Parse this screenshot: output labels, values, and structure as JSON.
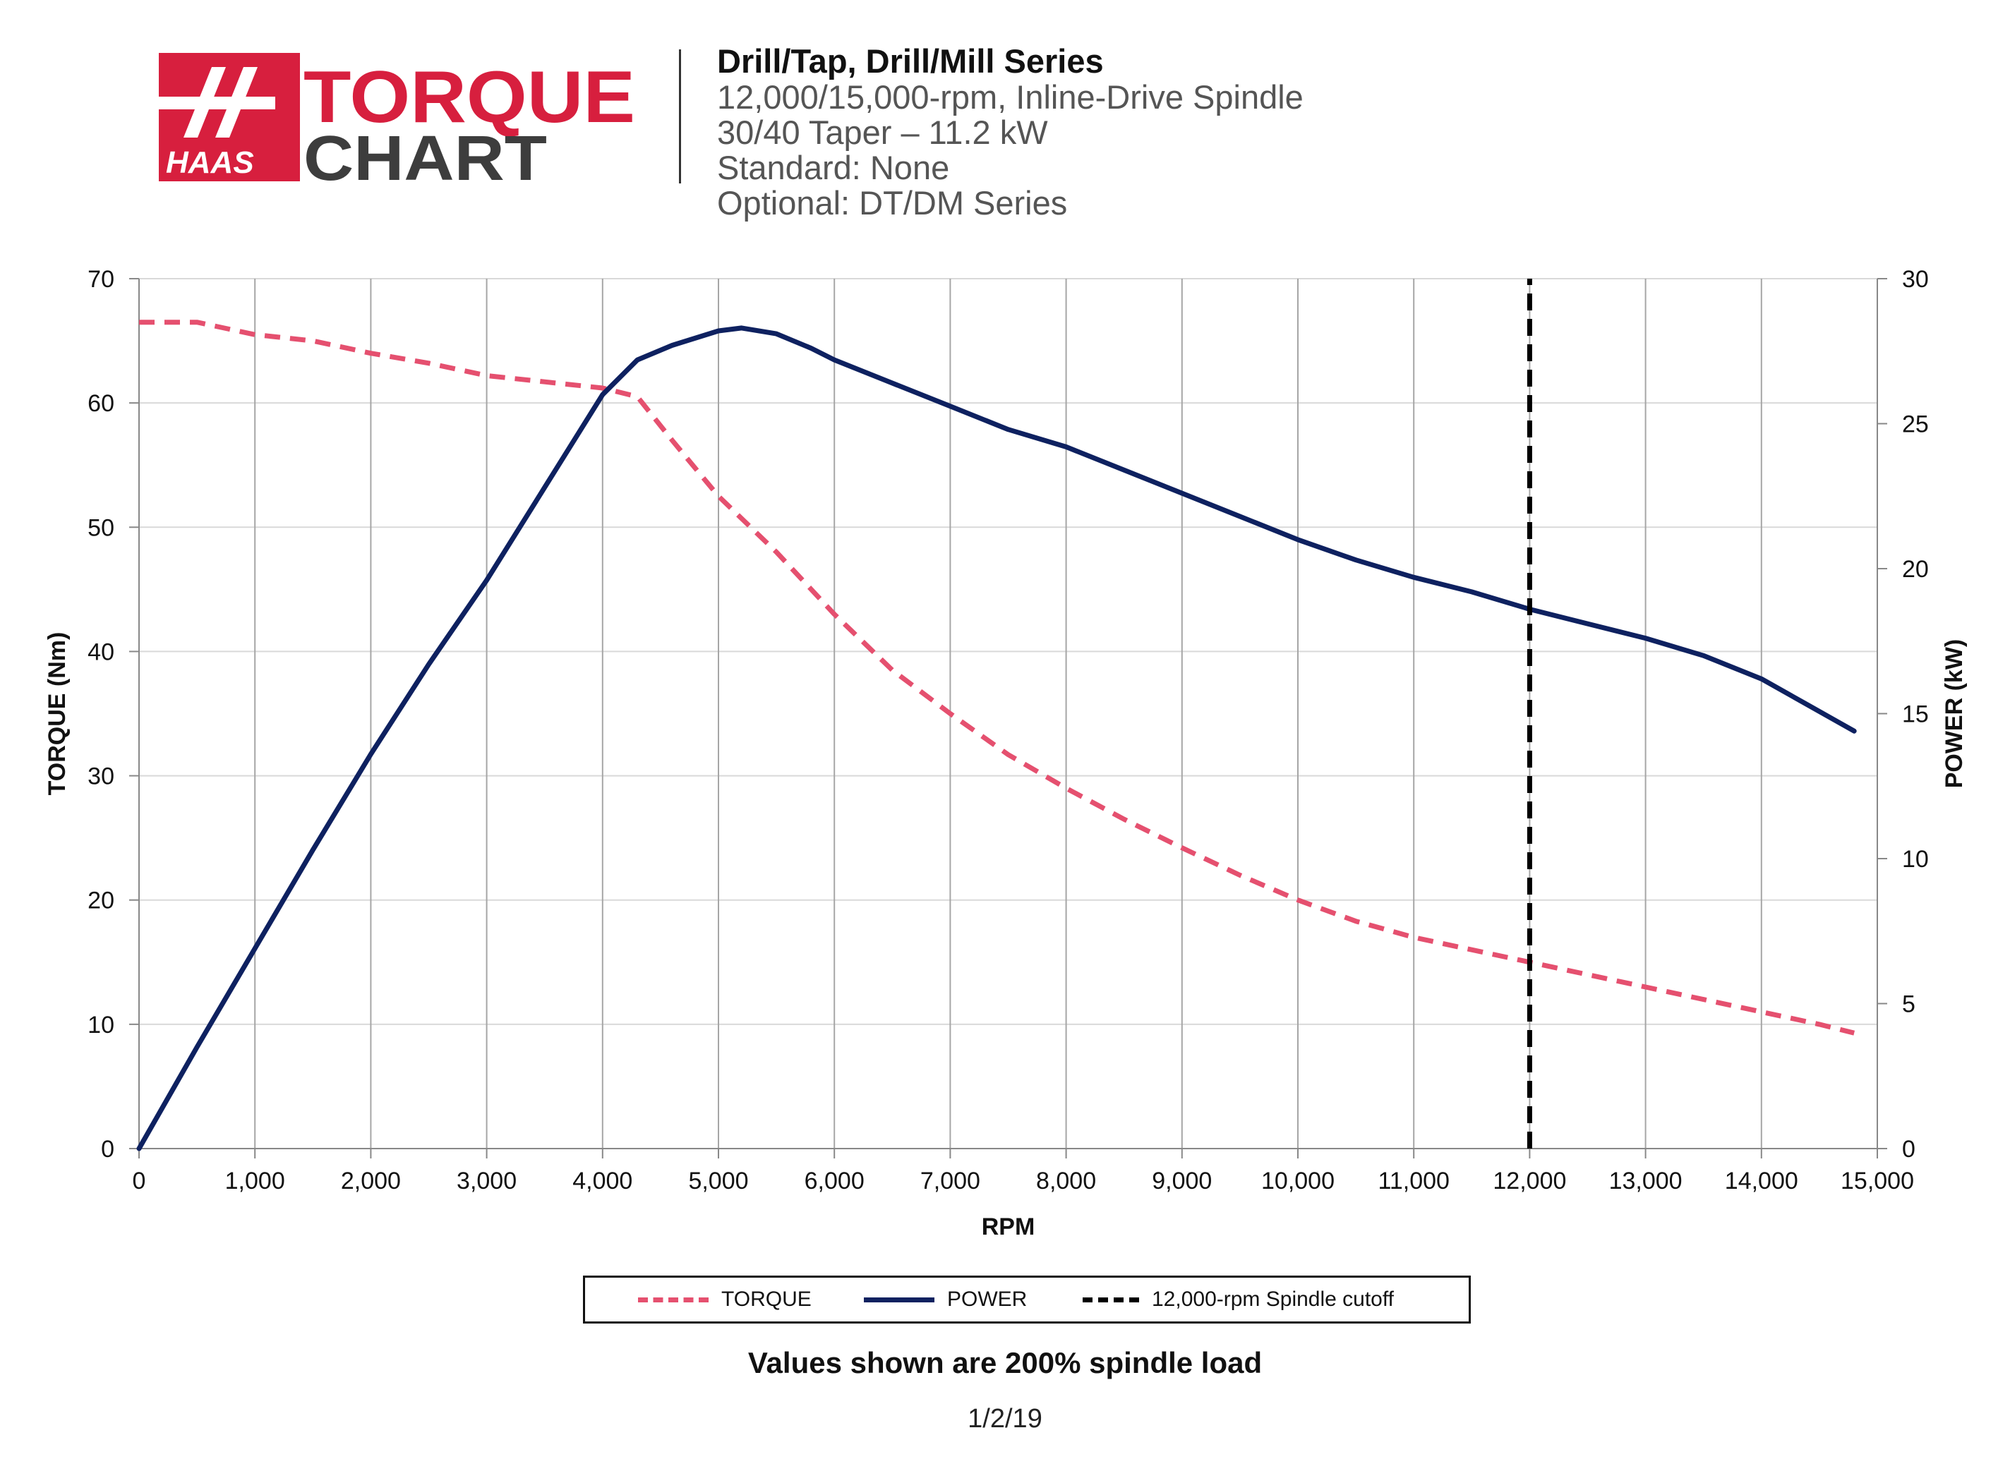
{
  "brand": {
    "logo_text_haas": "HAAS",
    "logo_text_torque": "TORQUE",
    "logo_text_chart": "CHART",
    "red": "#d71f3e",
    "dark": "#3d3d3d"
  },
  "header": {
    "line1": "Drill/Tap, Drill/Mill Series",
    "line2": "12,000/15,000-rpm, Inline-Drive Spindle",
    "line3": "30/40 Taper – 11.2 kW",
    "line4": "Standard: None",
    "line5": "Optional: DT/DM Series"
  },
  "chart_data": {
    "type": "line",
    "xlabel": "RPM",
    "ylabel_left": "TORQUE (Nm)",
    "ylabel_right": "POWER (kW)",
    "xlim": [
      0,
      15000
    ],
    "ylim_left": [
      0,
      70
    ],
    "ylim_right": [
      0,
      30
    ],
    "x_ticks": [
      0,
      1000,
      2000,
      3000,
      4000,
      5000,
      6000,
      7000,
      8000,
      9000,
      10000,
      11000,
      12000,
      13000,
      14000,
      15000
    ],
    "x_tick_labels": [
      "0",
      "1,000",
      "2,000",
      "3,000",
      "4,000",
      "5,000",
      "6,000",
      "7,000",
      "8,000",
      "9,000",
      "10,000",
      "11,000",
      "12,000",
      "13,000",
      "14,000",
      "15,000"
    ],
    "y_left_ticks": [
      0,
      10,
      20,
      30,
      40,
      50,
      60,
      70
    ],
    "y_left_tick_labels": [
      "0",
      "10",
      "20",
      "30",
      "40",
      "50",
      "60",
      "70"
    ],
    "y_right_ticks": [
      0,
      5,
      10,
      15,
      20,
      25,
      30
    ],
    "y_right_tick_labels": [
      "0",
      "5",
      "10",
      "15",
      "20",
      "25",
      "30"
    ],
    "grid": "vertical",
    "legend_position": "bottom",
    "series": [
      {
        "name": "TORQUE",
        "axis": "left",
        "style": "dashed",
        "color": "#e5506f",
        "x": [
          0,
          500,
          1000,
          1500,
          2000,
          2500,
          3000,
          3500,
          4000,
          4300,
          4600,
          5000,
          5500,
          6000,
          6500,
          7000,
          7500,
          8000,
          8500,
          9000,
          9500,
          10000,
          10500,
          11000,
          11500,
          12000,
          12500,
          13000,
          13500,
          14000,
          14500,
          14800
        ],
        "y": [
          66.5,
          66.5,
          65.5,
          65,
          64,
          63.2,
          62.2,
          61.7,
          61.2,
          60.5,
          57,
          52.5,
          48,
          43,
          38.5,
          35,
          31.7,
          29,
          26.5,
          24.2,
          22,
          20,
          18.3,
          17,
          16,
          15,
          14,
          13,
          12,
          11,
          10,
          9.3
        ]
      },
      {
        "name": "POWER",
        "axis": "right",
        "style": "solid",
        "color": "#0e2160",
        "x": [
          0,
          500,
          1000,
          1500,
          2000,
          2500,
          3000,
          3500,
          4000,
          4300,
          4600,
          5000,
          5200,
          5500,
          5800,
          6000,
          6500,
          7000,
          7500,
          8000,
          8500,
          9000,
          9500,
          10000,
          10500,
          11000,
          11500,
          12000,
          12500,
          13000,
          13500,
          14000,
          14400,
          14800
        ],
        "y": [
          0,
          3.5,
          6.9,
          10.3,
          13.6,
          16.7,
          19.6,
          22.8,
          26,
          27.2,
          27.7,
          28.2,
          28.3,
          28.1,
          27.6,
          27.2,
          26.4,
          25.6,
          24.8,
          24.2,
          23.4,
          22.6,
          21.8,
          21,
          20.3,
          19.7,
          19.2,
          18.6,
          18.1,
          17.6,
          17.0,
          16.2,
          15.3,
          14.4
        ]
      },
      {
        "name": "12,000-rpm Spindle cutoff",
        "axis": "left",
        "style": "dashed",
        "color": "#000000",
        "x": [
          12000,
          12000
        ],
        "y": [
          0,
          70
        ]
      }
    ]
  },
  "footer": {
    "note": "Values shown are 200% spindle load",
    "date": "1/2/19"
  }
}
